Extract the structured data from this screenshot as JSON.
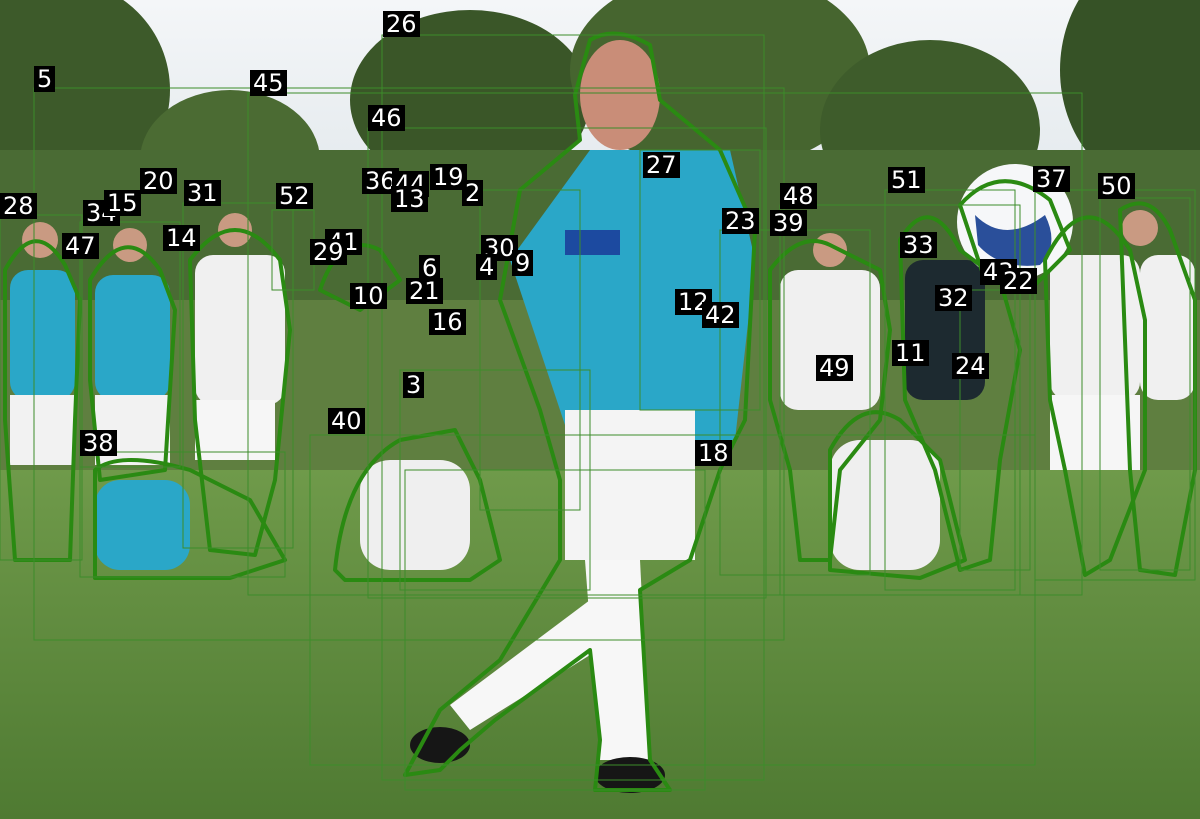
{
  "colors": {
    "sky": "#e9eef2",
    "trees": "#3f5e2c",
    "grass": "#5e8a3e",
    "outline": "#2a8a12",
    "box": "#3c8c2a",
    "jersey_teal": "#2aa7c8",
    "shorts_white": "#f2f2f2",
    "label_bg": "#000000",
    "label_text": "#ffffff"
  },
  "annotations": [
    {
      "id": "26"
    },
    {
      "id": "5"
    },
    {
      "id": "45"
    },
    {
      "id": "46"
    },
    {
      "id": "27"
    },
    {
      "id": "28"
    },
    {
      "id": "34"
    },
    {
      "id": "15"
    },
    {
      "id": "20"
    },
    {
      "id": "31"
    },
    {
      "id": "52"
    },
    {
      "id": "47"
    },
    {
      "id": "14"
    },
    {
      "id": "41"
    },
    {
      "id": "29"
    },
    {
      "id": "36"
    },
    {
      "id": "44"
    },
    {
      "id": "19"
    },
    {
      "id": "13"
    },
    {
      "id": "2"
    },
    {
      "id": "30"
    },
    {
      "id": "4"
    },
    {
      "id": "9"
    },
    {
      "id": "6"
    },
    {
      "id": "10"
    },
    {
      "id": "21"
    },
    {
      "id": "16"
    },
    {
      "id": "12"
    },
    {
      "id": "42"
    },
    {
      "id": "23"
    },
    {
      "id": "48"
    },
    {
      "id": "39"
    },
    {
      "id": "51"
    },
    {
      "id": "37"
    },
    {
      "id": "50"
    },
    {
      "id": "33"
    },
    {
      "id": "43"
    },
    {
      "id": "22"
    },
    {
      "id": "32"
    },
    {
      "id": "11"
    },
    {
      "id": "49"
    },
    {
      "id": "24"
    },
    {
      "id": "3"
    },
    {
      "id": "40"
    },
    {
      "id": "38"
    },
    {
      "id": "18"
    }
  ]
}
